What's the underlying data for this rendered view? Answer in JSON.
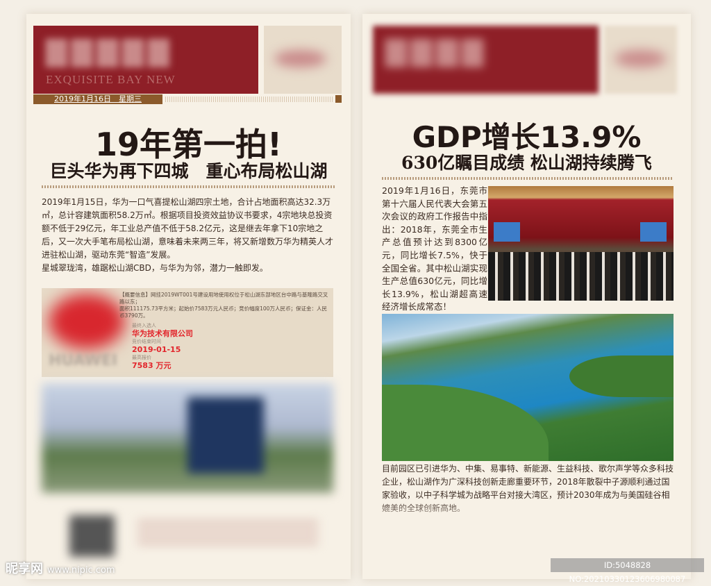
{
  "left": {
    "masthead_en": "EXQUISITE BAY NEW",
    "date": "2019年1月16日　星期三",
    "headline": "19年第一拍!",
    "subheadline": "巨头华为再下四城　重心布局松山湖",
    "paragraphs": [
      "2019年1月15日，华为一口气喜提松山湖四宗土地，合计占地面积高达32.3万㎡，总计容建筑面积58.2万㎡。根据项目投资效益协议书要求，4宗地块总投资额不低于29亿元，年工业总产值不低于58.2亿元，这是继去年拿下10宗地之后，又一次大手笔布局松山湖，意味着未来两三年，将又新增数万华为精英人才进驻松山湖，驱动东莞“智造”发展。",
      "星城翠珑湾，雄踞松山湖CBD，与华为为邻，潜力一触即发。"
    ],
    "info": {
      "line1": "【概要信息】网挂2019WT001号建设用地使用权位于松山湖东部地区台中路与基隆路交叉路以东；",
      "line2": "面积111175.73平方米；起始价7583万元人民币；竞价幅度100万人民币；保证金：人民币3790万。",
      "winner_label": "最终入选人",
      "winner": "华为技术有限公司",
      "end_label": "竞价结束时间",
      "end_date": "2019-01-15",
      "price_label": "最高报价",
      "price": "7583 万元"
    }
  },
  "right": {
    "headline": "GDP增长13.9%",
    "subheadline": "630亿瞩目成绩 松山湖持续腾飞",
    "column_text": "2019年1月16日，东莞市第十六届人民代表大会第五次会议的政府工作报告中指出：2018年，东莞全市生产总值预计达到8300亿元，同比增长7.5%，快于全国全省。其中松山湖实现生产总值630亿元，同比增长13.9%，松山湖超高速经济增长成常态！",
    "bottom_text": "目前园区已引进华为、中集、易事特、新能源、生益科技、歌尔声学等众多科技企业，松山湖作为广深科技创新走廊重要环节，2018年散裂中子源顺利通过国家验收，以中子科学城为战略平台对接大湾区，预计2030年成为与美国硅谷相媲美的全球创新高地。"
  },
  "watermark": {
    "logo": "昵享网",
    "url": "www.nipic.com"
  },
  "id_bar": "ID:5048828 NO:20210330123606980087",
  "colors": {
    "brand_red": "#8e1f27",
    "brown": "#8b5a2b",
    "accent_red": "#e2262c"
  }
}
